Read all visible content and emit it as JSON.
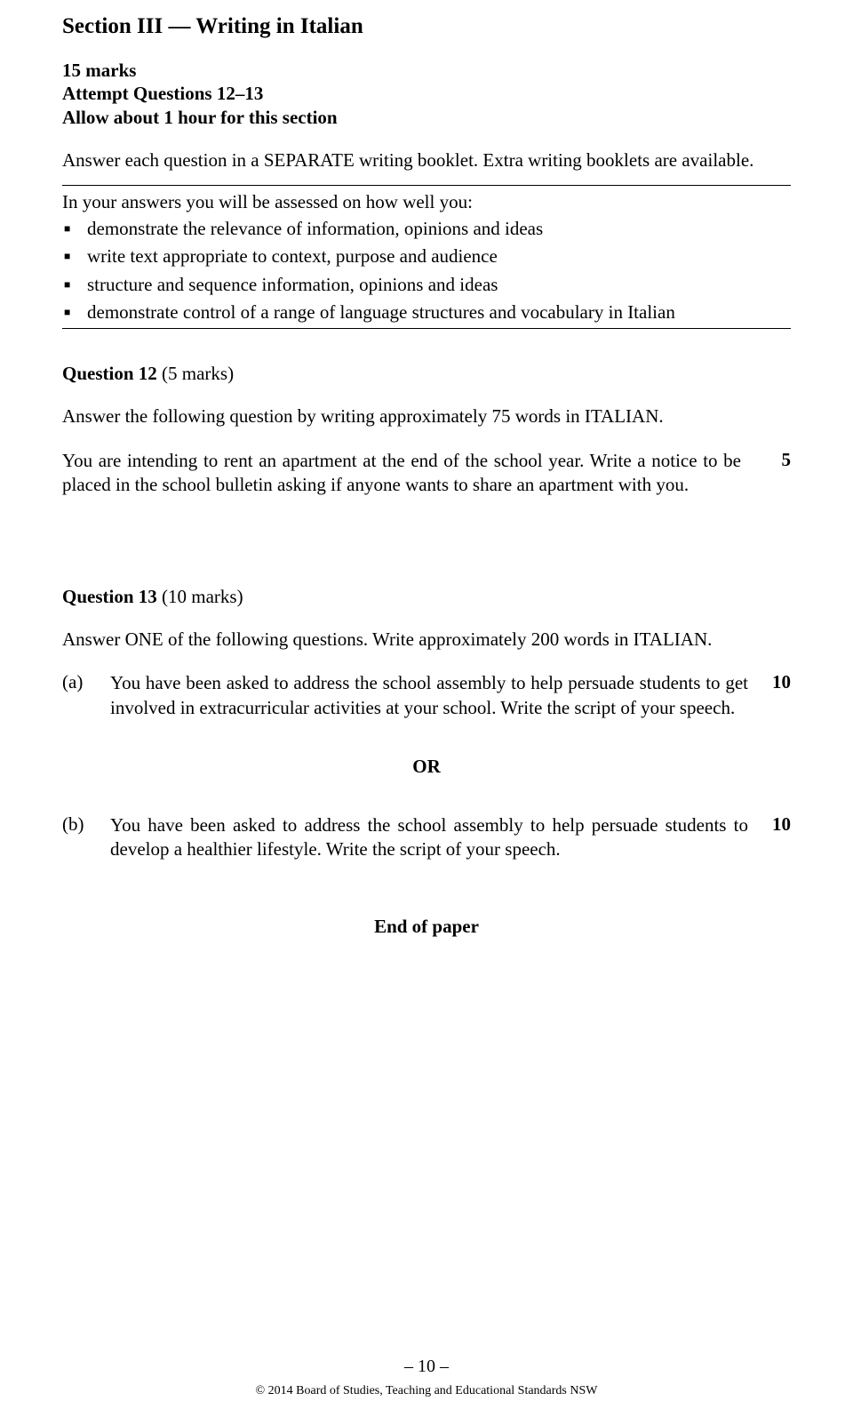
{
  "section": {
    "title": "Section III — Writing in Italian",
    "marks": "15 marks",
    "attempt": "Attempt Questions 12–13",
    "time": "Allow about 1 hour for this section",
    "intro": "Answer each question in a SEPARATE writing booklet. Extra writing booklets are available."
  },
  "assessment": {
    "lead": "In your answers you will be assessed on how well you:",
    "bullets": [
      "demonstrate the relevance of information, opinions and ideas",
      "write text appropriate to context, purpose and audience",
      "structure and sequence information, opinions and ideas",
      "demonstrate control of a range of language structures and vocabulary in Italian"
    ]
  },
  "q12": {
    "heading_label": "Question 12",
    "heading_marks": "(5 marks)",
    "instruction": "Answer the following question by writing approximately 75 words in ITALIAN.",
    "prompt": "You are intending to rent an apartment at the end of the school year. Write a notice to be placed in the school bulletin asking if anyone wants to share an apartment with you.",
    "marks": "5"
  },
  "q13": {
    "heading_label": "Question 13",
    "heading_marks": "(10 marks)",
    "instruction": "Answer ONE of the following questions. Write approximately 200 words in ITALIAN.",
    "a": {
      "label": "(a)",
      "text": "You have been asked to address the school assembly to help persuade students to get involved in extracurricular activities at your school. Write the script of your speech.",
      "marks": "10"
    },
    "or": "OR",
    "b": {
      "label": "(b)",
      "text": "You have been asked to address the school assembly to help persuade students to develop a healthier lifestyle. Write the script of your speech.",
      "marks": "10"
    }
  },
  "footer": {
    "end": "End of paper",
    "page": "– 10 –",
    "copyright": "© 2014 Board of Studies, Teaching and Educational Standards NSW"
  }
}
